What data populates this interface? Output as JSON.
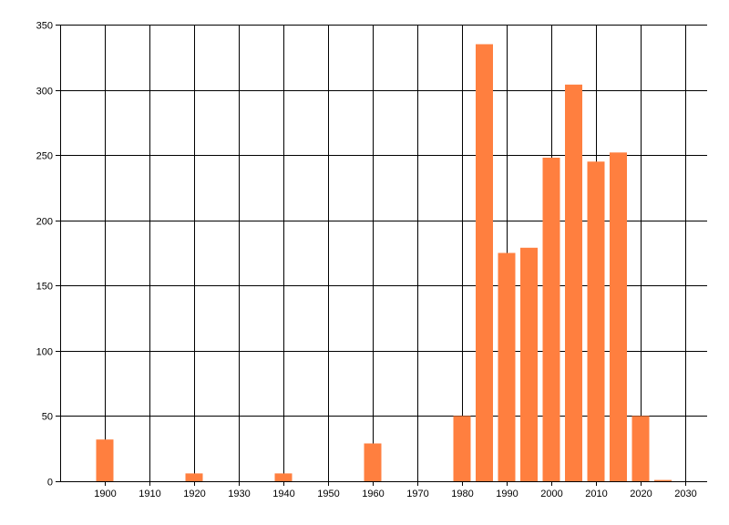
{
  "chart_data": {
    "type": "bar",
    "title": "",
    "xlabel": "",
    "ylabel": "",
    "x": [
      1900,
      1920,
      1940,
      1960,
      1980,
      1985,
      1990,
      1995,
      2000,
      2005,
      2010,
      2015,
      2020,
      2025
    ],
    "values": [
      32,
      6,
      6,
      29,
      50,
      335,
      175,
      179,
      248,
      304,
      245,
      252,
      50,
      1
    ],
    "xlim": [
      1890,
      2030
    ],
    "ylim": [
      0,
      350
    ],
    "xticks": [
      1900,
      1910,
      1920,
      1930,
      1940,
      1950,
      1960,
      1970,
      1980,
      1990,
      2000,
      2010,
      2020,
      2030
    ],
    "yticks": [
      0,
      50,
      100,
      150,
      200,
      250,
      300,
      350
    ],
    "grid": true,
    "legend": "none",
    "bar_color": "#ff7f3f",
    "grid_color": "#000000"
  }
}
